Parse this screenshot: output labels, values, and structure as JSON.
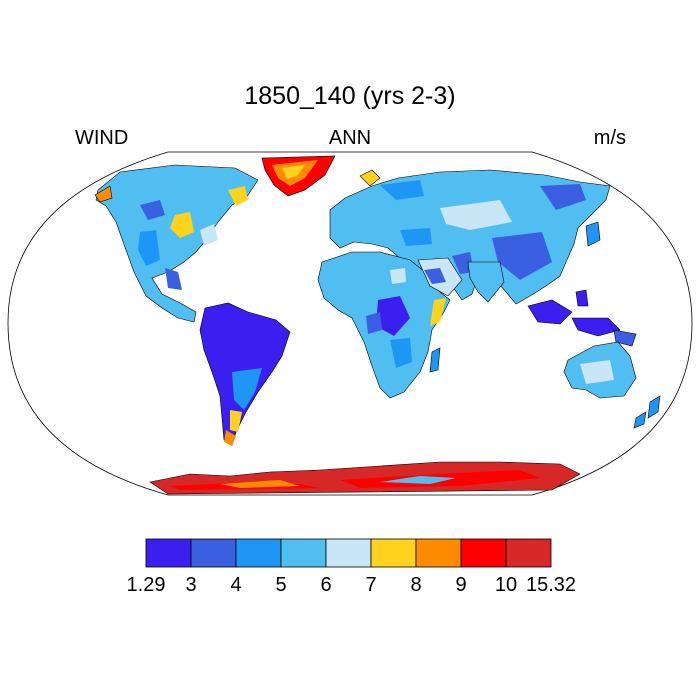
{
  "title": "1850_140 (yrs 2-3)",
  "left_string": "WIND",
  "center_string": "ANN",
  "right_string": "m/s",
  "colorbar": {
    "labels": [
      "1.29",
      "3",
      "4",
      "5",
      "6",
      "7",
      "8",
      "9",
      "10",
      "15.32"
    ],
    "colors": [
      "#3d1ef0",
      "#3a5fe0",
      "#1e96f5",
      "#50bef0",
      "#c8e6f5",
      "#ffd21e",
      "#ff8c00",
      "#ff0000",
      "#d72828"
    ]
  },
  "map": {
    "projection": "Robinson",
    "variable": "annual mean wind speed",
    "ocean_fill": "#ffffff",
    "coastline_color": "#000000"
  }
}
